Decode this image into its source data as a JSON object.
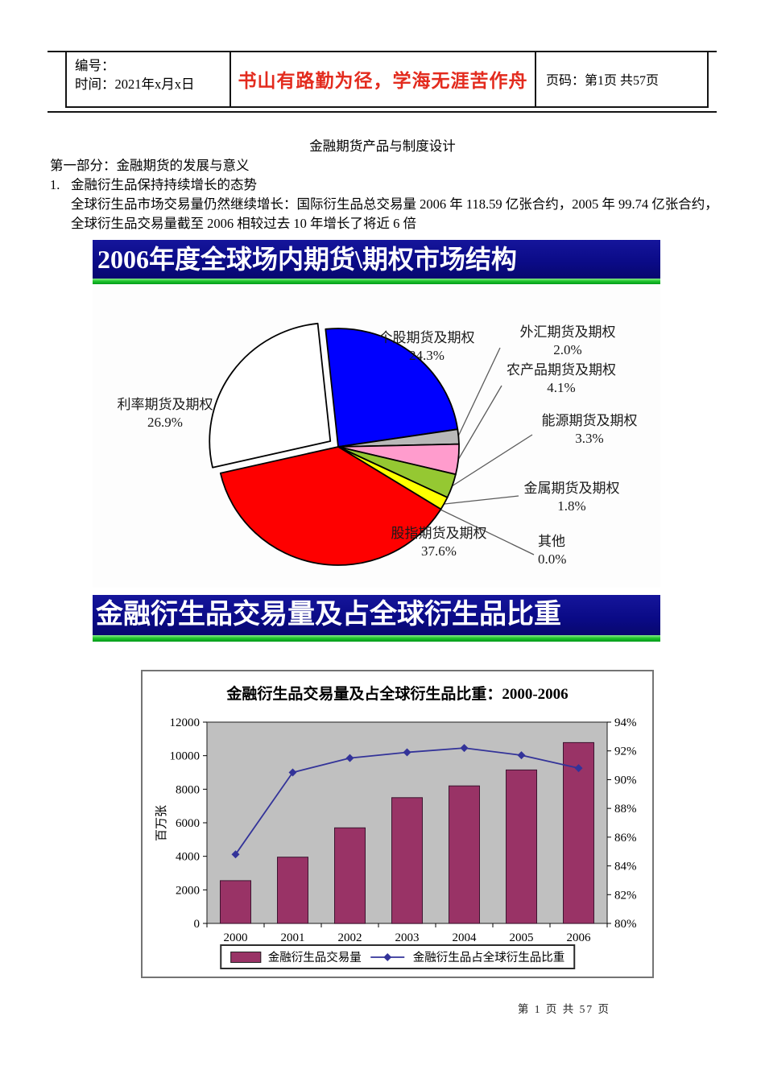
{
  "header": {
    "number_label": "编号：",
    "date_label": "时间：2021年x月x日",
    "slogan": "书山有路勤为径，学海无涯苦作舟",
    "page_label": "页码：第1页 共57页"
  },
  "document": {
    "title": "金融期货产品与制度设计",
    "section_heading": "第一部分：金融期货的发展与意义",
    "list_number": "1.",
    "list_title": "金融衍生品保持持续增长的态势",
    "body_line1": "全球衍生品市场交易量仍然继续增长：国际衍生品总交易量 2006 年 118.59 亿张合约，2005 年 99.74 亿张合约，",
    "body_line2": "全球衍生品交易量截至 2006 相较过去 10 年增长了将近 6 倍"
  },
  "banners": {
    "pie": "2006年度全球场内期货\\期权市场结构",
    "combo": "金融衍生品交易量及占全球衍生品比重"
  },
  "footer": {
    "page_text": "第 1 页 共 57 页"
  },
  "colors": {
    "banner_blue": "#0a0a86",
    "banner_green": "#22c52e",
    "slogan_red": "#e32b1e"
  },
  "chart_data": [
    {
      "type": "pie",
      "title": "2006年度全球场内期货\\期权市场结构",
      "slices": [
        {
          "label": "个股期货及期权",
          "value": 24.3,
          "display": "24.3%",
          "color": "#0000ff"
        },
        {
          "label": "外汇期货及期权",
          "value": 2.0,
          "display": "2.0%",
          "color": "#b8b8b8"
        },
        {
          "label": "农产品期货及期权",
          "value": 4.1,
          "display": "4.1%",
          "color": "#ff9ccd"
        },
        {
          "label": "能源期货及期权",
          "value": 3.3,
          "display": "3.3%",
          "color": "#95c832"
        },
        {
          "label": "金属期货及期权",
          "value": 1.8,
          "display": "1.8%",
          "color": "#ffff00"
        },
        {
          "label": "其他",
          "value": 0.0,
          "display": "0.0%",
          "color": "#808080"
        },
        {
          "label": "股指期货及期权",
          "value": 37.6,
          "display": "37.6%",
          "color": "#fe0000"
        },
        {
          "label": "利率期货及期权",
          "value": 26.9,
          "display": "26.9%",
          "color": "#ffffff",
          "exploded": true
        }
      ]
    },
    {
      "type": "combo",
      "title": "金融衍生品交易量及占全球衍生品比重：2000-2006",
      "categories": [
        "2000",
        "2001",
        "2002",
        "2003",
        "2004",
        "2005",
        "2006"
      ],
      "bar_series": {
        "name": "金融衍生品交易量",
        "values": [
          2550,
          3950,
          5700,
          7500,
          8200,
          9150,
          10780
        ],
        "color": "#993366"
      },
      "line_series": {
        "name": "金融衍生品占全球衍生品比重",
        "values_percent": [
          84.8,
          90.5,
          91.5,
          91.9,
          92.2,
          91.7,
          90.8
        ],
        "color": "#333399"
      },
      "left_axis": {
        "title": "百万张",
        "min": 0,
        "max": 12000,
        "step": 2000
      },
      "right_axis": {
        "min": 80,
        "max": 94,
        "step": 2,
        "suffix": "%"
      },
      "plot_background": "#c0c0c0",
      "legend_position": "bottom"
    }
  ]
}
